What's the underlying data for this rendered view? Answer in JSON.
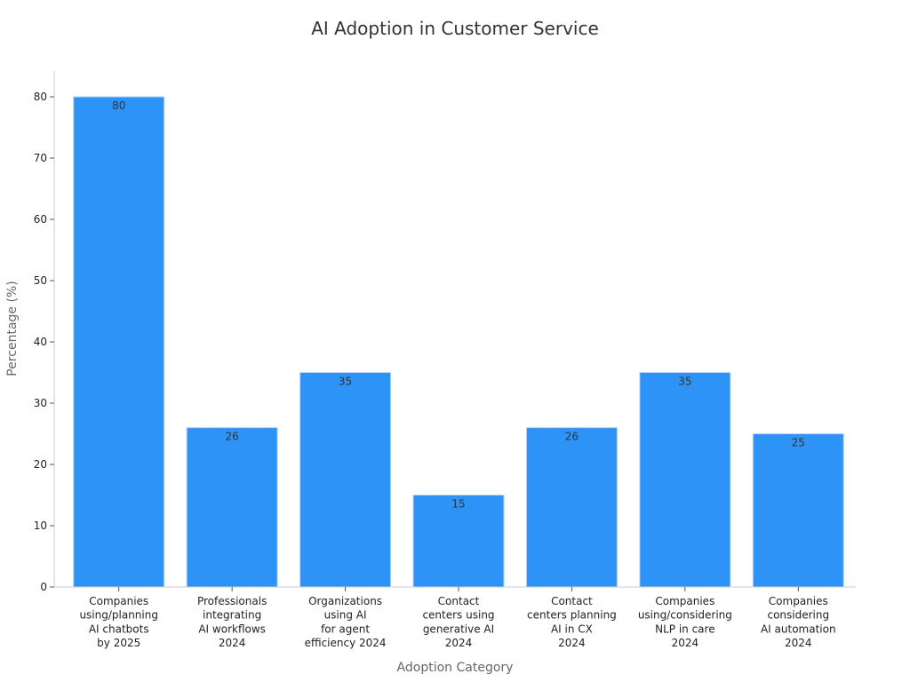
{
  "chart_data": {
    "type": "bar",
    "title": "AI Adoption in Customer Service",
    "xlabel": "Adoption Category",
    "ylabel": "Percentage (%)",
    "ylim": [
      0,
      80
    ],
    "yticks": [
      0,
      10,
      20,
      30,
      40,
      50,
      60,
      70,
      80
    ],
    "categories": [
      "Companies\nusing/planning\nAI chatbots\nby 2025",
      "Professionals\nintegrating\nAI workflows\n2024",
      "Organizations\nusing AI\nfor agent\nefficiency 2024",
      "Contact\ncenters using\ngenerative AI\n2024",
      "Contact\ncenters planning\nAI in CX\n2024",
      "Companies\nusing/considering\nNLP in care\n2024",
      "Companies\nconsidering\nAI automation\n2024"
    ],
    "values": [
      80,
      26,
      35,
      15,
      26,
      35,
      25
    ],
    "bar_color": "#2e93f7",
    "grid": false,
    "legend": "none"
  }
}
